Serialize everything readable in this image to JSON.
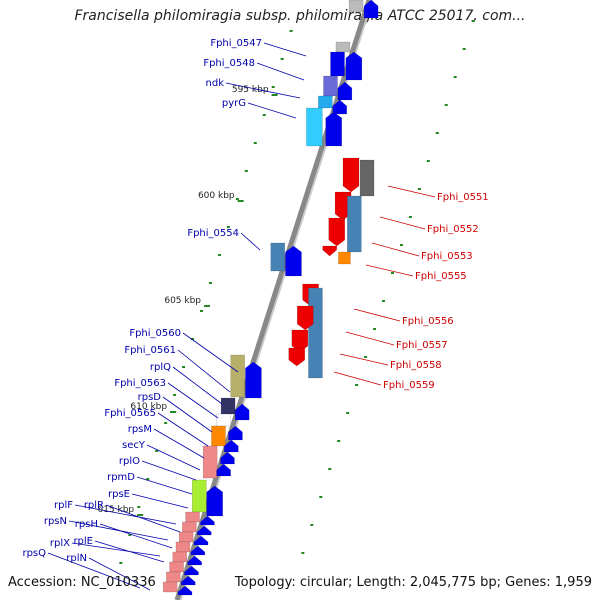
{
  "title": "Francisella philomiragia subsp. philomiragia ATCC 25017, com...",
  "footer": {
    "accession": "Accession: NC_010336",
    "topology": "Topology: circular; Length: 2,045,775 bp; Genes: 1,959"
  },
  "colors": {
    "backbone": "#888888",
    "plus_strand_label": "#0000aa",
    "minus_strand_label": "#cc0000",
    "plus_arrow": "#0000ee",
    "minus_arrow": "#ee0000",
    "tick_mark": "#228822"
  },
  "ticks": [
    {
      "label": "595 kbp"
    },
    {
      "label": "600 kbp"
    },
    {
      "label": "605 kbp"
    },
    {
      "label": "610 kbp"
    },
    {
      "label": "615 kbp"
    }
  ],
  "left_genes": [
    {
      "label": "Fphi_0547"
    },
    {
      "label": "Fphi_0548"
    },
    {
      "label": "ndk"
    },
    {
      "label": "pyrG"
    },
    {
      "label": "Fphi_0554"
    },
    {
      "label": "Fphi_0560"
    },
    {
      "label": "Fphi_0561"
    },
    {
      "label": "rplQ"
    },
    {
      "label": "Fphi_0563"
    },
    {
      "label": "rpsD"
    },
    {
      "label": "Fphi_0565"
    },
    {
      "label": "rpsM"
    },
    {
      "label": "secY"
    },
    {
      "label": "rplO"
    },
    {
      "label": "rpmD"
    },
    {
      "label": "rpsE"
    },
    {
      "label": "rplF"
    },
    {
      "label": "rplR"
    },
    {
      "label": "rpsN"
    },
    {
      "label": "rpsH"
    },
    {
      "label": "rplX"
    },
    {
      "label": "rplE"
    },
    {
      "label": "rpsQ"
    },
    {
      "label": "rplN"
    }
  ],
  "right_genes": [
    {
      "label": "Fphi_0551"
    },
    {
      "label": "Fphi_0552"
    },
    {
      "label": "Fphi_0553"
    },
    {
      "label": "Fphi_0555"
    },
    {
      "label": "Fphi_0556"
    },
    {
      "label": "Fphi_0557"
    },
    {
      "label": "Fphi_0558"
    },
    {
      "label": "Fphi_0559"
    }
  ]
}
